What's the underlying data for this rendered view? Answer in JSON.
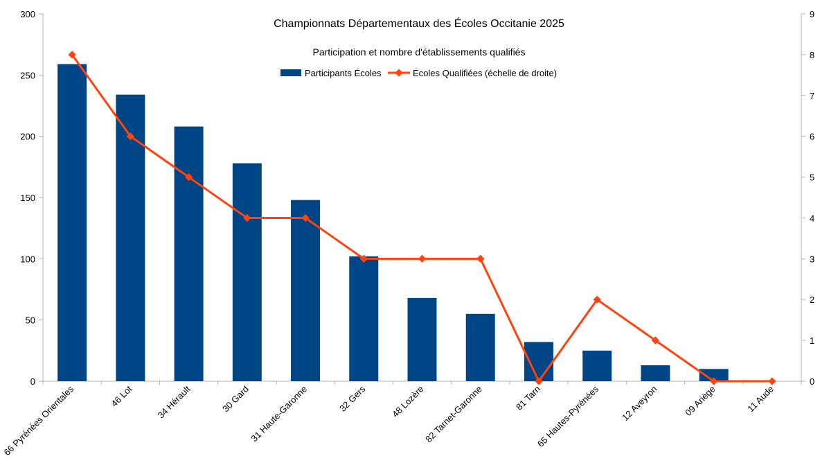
{
  "chart_data": {
    "type": "bar",
    "title": "Championnats Départementaux des Écoles Occitanie 2025",
    "subtitle": "Participation et nombre d'établissements qualifiés",
    "categories": [
      "66 Pyrénées Orientales",
      "46 Lot",
      "34 Hérault",
      "30 Gard",
      "31 Haute-Garonne",
      "32 Gers",
      "48 Lozère",
      "82 Tarnet-Garonne",
      "81 Tarn",
      "65 Hautes-Pyrénées",
      "12 Aveyron",
      "09 Ariège",
      "11 Aude"
    ],
    "series": [
      {
        "name": "Participants Écoles",
        "type": "bar",
        "axis": "left",
        "color": "#004586",
        "values": [
          259,
          234,
          208,
          178,
          148,
          102,
          68,
          55,
          32,
          25,
          13,
          10,
          0
        ]
      },
      {
        "name": "Écoles Qualifiées (échelle de droite)",
        "type": "line",
        "axis": "right",
        "color": "#ff420e",
        "values": [
          8,
          6,
          5,
          4,
          4,
          3,
          3,
          3,
          0,
          2,
          1,
          0,
          0
        ]
      }
    ],
    "y_left": {
      "min": 0,
      "max": 300,
      "step": 50
    },
    "y_right": {
      "min": 0,
      "max": 9,
      "step": 1
    },
    "grid": false,
    "legend_position": "top-center"
  }
}
